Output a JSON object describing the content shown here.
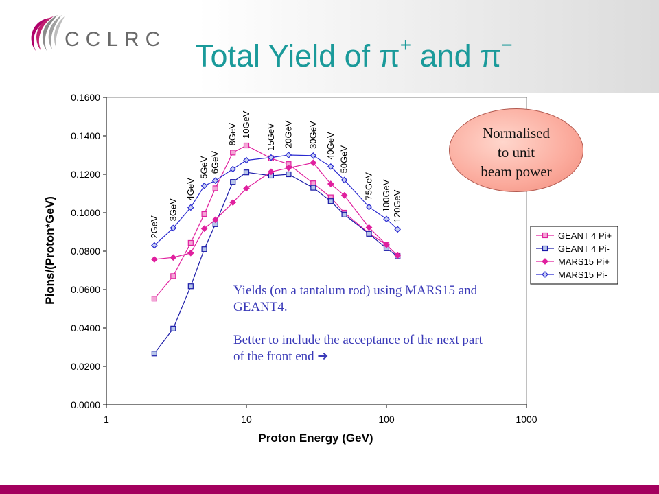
{
  "header": {
    "logo_text": "CCLRC",
    "title_main": "Total Yield of ",
    "title_pi": "π",
    "title_plus": "+",
    "title_and": " and ",
    "title_minus": "−"
  },
  "annotation": {
    "line1": "Yields (on a tantalum rod) using MARS15 and GEANT4.",
    "line2": "Better to include the acceptance of the next part of the front end",
    "arrow": "➔"
  },
  "bubble": {
    "line1": "Normalised",
    "line2": "to unit",
    "line3": "beam power"
  },
  "colors": {
    "accent": "#1a9a9a",
    "footer": "#a3005e",
    "geant_pi_plus": "#e0209e",
    "geant_pi_minus": "#1a1aa8",
    "mars_pi_plus": "#e0209e",
    "mars_pi_minus": "#2a2ad0"
  },
  "chart_data": {
    "type": "line",
    "x_scale": "log",
    "xlabel": "Proton Energy (GeV)",
    "ylabel": "Pions/(Proton*GeV)",
    "xlim": [
      1,
      1000
    ],
    "ylim": [
      0,
      0.16
    ],
    "x_ticks": [
      "1",
      "10",
      "100",
      "1000"
    ],
    "y_ticks": [
      "0.0000",
      "0.0200",
      "0.0400",
      "0.0600",
      "0.0800",
      "0.1000",
      "0.1200",
      "0.1400",
      "0.1600"
    ],
    "grid": false,
    "legend": "right",
    "x": [
      2.2,
      3,
      4,
      5,
      6,
      8,
      10,
      15,
      20,
      30,
      40,
      50,
      75,
      100,
      120
    ],
    "point_labels": [
      "2GeV",
      "3GeV",
      "4GeV",
      "5GeV",
      "6GeV",
      "8GeV",
      "10GeV",
      "15GeV",
      "20GeV",
      "30GeV",
      "40GeV",
      "50GeV",
      "75GeV",
      "100GeV",
      "120GeV"
    ],
    "series": [
      {
        "name": "GEANT 4 Pi+",
        "marker": "square-open",
        "values": [
          0.0553,
          0.067,
          0.0843,
          0.0993,
          0.1127,
          0.1313,
          0.135,
          0.1283,
          0.1253,
          0.1153,
          0.108,
          0.1,
          0.0893,
          0.0833,
          0.0775
        ]
      },
      {
        "name": "GEANT 4 Pi-",
        "marker": "square-open",
        "values": [
          0.0267,
          0.0397,
          0.0617,
          0.081,
          0.094,
          0.116,
          0.121,
          0.1193,
          0.12,
          0.113,
          0.106,
          0.099,
          0.089,
          0.0815,
          0.0773
        ]
      },
      {
        "name": "MARS15 Pi+",
        "marker": "diamond",
        "values": [
          0.0757,
          0.0767,
          0.079,
          0.0917,
          0.0963,
          0.1053,
          0.1127,
          0.1213,
          0.1233,
          0.126,
          0.115,
          0.109,
          0.0923,
          0.0833,
          0.0777
        ]
      },
      {
        "name": "MARS15 Pi-",
        "marker": "diamond",
        "values": [
          0.083,
          0.092,
          0.1027,
          0.114,
          0.1167,
          0.1227,
          0.1273,
          0.1287,
          0.13,
          0.1297,
          0.124,
          0.117,
          0.103,
          0.0967,
          0.0913
        ]
      }
    ]
  }
}
